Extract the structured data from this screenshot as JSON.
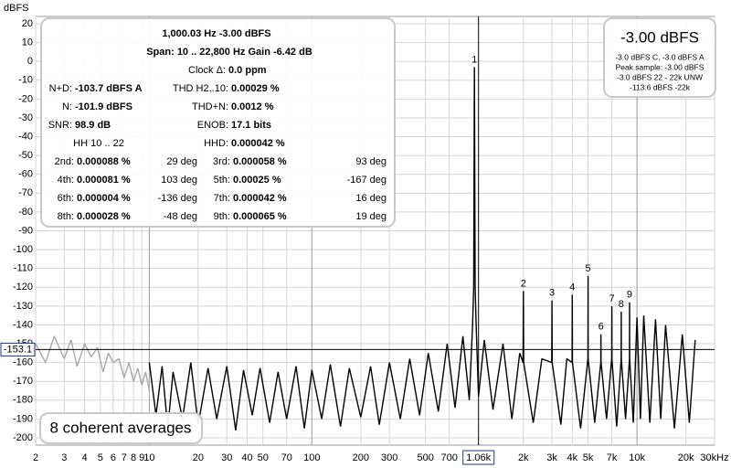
{
  "chart_data": {
    "type": "line",
    "y_label": "dBFS",
    "xscale": "log",
    "grid": true,
    "xlim": [
      2,
      30000
    ],
    "ylim": [
      -200,
      20
    ],
    "yticks": [
      20,
      10,
      0,
      -10,
      -20,
      -30,
      -40,
      -50,
      -60,
      -70,
      -80,
      -90,
      -100,
      -110,
      -120,
      -130,
      -140,
      -150,
      -160,
      -170,
      -180,
      -190,
      -200
    ],
    "xticks": [
      2,
      3,
      4,
      5,
      6,
      7,
      8,
      9,
      10,
      20,
      30,
      40,
      50,
      70,
      100,
      200,
      300,
      500,
      700,
      {
        "value": 2000,
        "label": "2k"
      },
      {
        "value": 3000,
        "label": "3k"
      },
      {
        "value": 4000,
        "label": "4k"
      },
      {
        "value": 5000,
        "label": "5k"
      },
      {
        "value": 7000,
        "label": "7k"
      },
      {
        "value": 10000,
        "label": "10k"
      },
      {
        "value": 20000,
        "label": "20k"
      },
      {
        "value": 30000,
        "label": "30kHz"
      }
    ],
    "cursor_x": {
      "value": 1060,
      "label": "1.06k"
    },
    "cursor_y": {
      "value": -153.1,
      "label": "-153.1"
    },
    "series": [
      {
        "color": "#a8a8a8",
        "x": [
          2,
          2.3,
          2.6,
          3,
          3.3,
          3.6,
          4,
          4.4,
          4.8,
          5.2,
          5.6,
          6,
          6.5,
          7,
          7.5,
          8,
          8.5,
          9,
          9.5,
          10
        ],
        "values": [
          -150,
          -160,
          -146,
          -158,
          -148,
          -162,
          -150,
          -157,
          -152,
          -165,
          -155,
          -160,
          -158,
          -168,
          -160,
          -170,
          -163,
          -172,
          -165,
          -175
        ]
      },
      {
        "color": "#000000",
        "x": [
          10,
          11,
          12,
          13,
          14,
          16,
          18,
          20,
          23,
          26,
          30,
          34,
          38,
          43,
          48,
          55,
          62,
          70,
          80,
          90,
          100,
          115,
          130,
          150,
          170,
          200,
          230,
          260,
          300,
          350,
          400,
          460,
          520,
          600,
          680,
          760,
          850,
          930,
          975,
          990,
          1000,
          1010,
          1025,
          1060,
          1150,
          1300,
          1500,
          1700,
          1900,
          1990,
          2000,
          2010,
          2300,
          2600,
          2990,
          3000,
          3010,
          3400,
          3700,
          3990,
          4000,
          4010,
          4500,
          4990,
          5000,
          5010,
          5500,
          5990,
          6000,
          6010,
          6500,
          6990,
          7000,
          7010,
          7500,
          7990,
          8000,
          8010,
          8500,
          8990,
          9000,
          9010,
          9500,
          10000,
          10500,
          11000,
          12000,
          13000,
          14000,
          15000,
          17000,
          19000,
          21000,
          22800
        ],
        "values": [
          -160,
          -188,
          -162,
          -195,
          -165,
          -190,
          -160,
          -193,
          -163,
          -190,
          -162,
          -196,
          -164,
          -188,
          -163,
          -192,
          -165,
          -190,
          -162,
          -195,
          -164,
          -190,
          -161,
          -194,
          -163,
          -189,
          -162,
          -193,
          -160,
          -190,
          -158,
          -188,
          -155,
          -186,
          -150,
          -184,
          -146,
          -180,
          -140,
          -120,
          -3,
          -120,
          -140,
          -178,
          -148,
          -185,
          -150,
          -190,
          -155,
          -160,
          -122,
          -160,
          -192,
          -158,
          -160,
          -127,
          -160,
          -193,
          -158,
          -160,
          -124,
          -160,
          -195,
          -158,
          -114,
          -158,
          -192,
          -160,
          -145,
          -160,
          -190,
          -158,
          -130,
          -158,
          -194,
          -158,
          -133,
          -158,
          -190,
          -158,
          -128,
          -158,
          -192,
          -136,
          -190,
          -135,
          -192,
          -137,
          -190,
          -140,
          -195,
          -145,
          -192,
          -148
        ]
      }
    ],
    "harmonics": [
      {
        "label": "1",
        "x": 1000,
        "y": -3
      },
      {
        "label": "2",
        "x": 2000,
        "y": -122
      },
      {
        "label": "3",
        "x": 3000,
        "y": -127
      },
      {
        "label": "4",
        "x": 4000,
        "y": -124
      },
      {
        "label": "5",
        "x": 5000,
        "y": -114
      },
      {
        "label": "6",
        "x": 6000,
        "y": -145
      },
      {
        "label": "7",
        "x": 7000,
        "y": -130
      },
      {
        "label": "8",
        "x": 8000,
        "y": -133
      },
      {
        "label": "9",
        "x": 9000,
        "y": -128
      }
    ],
    "panel": {
      "header": [
        "1,000.03 Hz  -3.00 dBFS",
        "Span: 10 .. 22,800 Hz   Gain -6.42 dB"
      ],
      "clock": [
        "Clock Δ:",
        "0.0 ppm"
      ],
      "stats": [
        [
          "N+D:",
          "-103.7 dBFS A",
          "THD H2..10:",
          "0.00029 %"
        ],
        [
          "N:",
          "-101.9 dBFS",
          "THD+N:",
          "0.0012 %"
        ],
        [
          "SNR:",
          "98.9 dB",
          "ENOB:",
          "17.1 bits"
        ]
      ],
      "hh": "HH 10 .. 22",
      "hhd": [
        "HHD:",
        "0.000042 %"
      ],
      "harmonic_rows": [
        [
          "2nd:",
          "0.000088 %",
          "29 deg",
          "3rd:",
          "0.000058 %",
          "93 deg"
        ],
        [
          "4th:",
          "0.000081 %",
          "103 deg",
          "5th:",
          "0.00025 %",
          "-167 deg"
        ],
        [
          "6th:",
          "0.000004 %",
          "-136 deg",
          "7th:",
          "0.000042 %",
          "16 deg"
        ],
        [
          "8th:",
          "0.000028 %",
          "-48 deg",
          "9th:",
          "0.000065 %",
          "19 deg"
        ]
      ]
    },
    "level_box": {
      "main": "-3.00 dBFS",
      "lines": [
        "-3.0 dBFS C, -3.0 dBFS A",
        "Peak sample: -3.00 dBFS",
        "-3.0 dBFS 22 - 22k UNW",
        "-113.6 dBFS -22k"
      ]
    },
    "averages": "8 coherent averages"
  }
}
